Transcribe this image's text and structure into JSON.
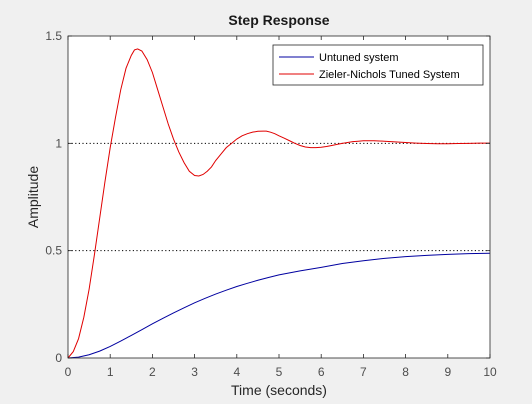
{
  "chart_data": {
    "type": "line",
    "title": "Step Response",
    "xlabel": "Time (seconds)",
    "ylabel": "Amplitude",
    "xlim": [
      0,
      10
    ],
    "ylim": [
      0,
      1.5
    ],
    "xticks": [
      "0",
      "1",
      "2",
      "3",
      "4",
      "5",
      "6",
      "7",
      "8",
      "9",
      "10"
    ],
    "yticks": [
      "0",
      "0.5",
      "1",
      "1.5"
    ],
    "grid": false,
    "reference_lines": [
      0.5,
      1.0
    ],
    "legend_position": "top-right",
    "series": [
      {
        "name": "Untuned system",
        "color": "#0000a0",
        "x": [
          0,
          0.25,
          0.5,
          0.75,
          1,
          1.25,
          1.5,
          1.75,
          2,
          2.25,
          2.5,
          2.75,
          3,
          3.25,
          3.5,
          3.75,
          4,
          4.25,
          4.5,
          4.75,
          5,
          5.5,
          6,
          6.5,
          7,
          7.5,
          8,
          8.5,
          9,
          9.5,
          10
        ],
        "y": [
          0,
          0.004,
          0.015,
          0.032,
          0.054,
          0.079,
          0.105,
          0.132,
          0.159,
          0.185,
          0.21,
          0.234,
          0.257,
          0.278,
          0.298,
          0.316,
          0.333,
          0.348,
          0.362,
          0.375,
          0.387,
          0.406,
          0.422,
          0.44,
          0.453,
          0.464,
          0.472,
          0.478,
          0.483,
          0.486,
          0.488
        ]
      },
      {
        "name": "Zieler-Nichols Tuned System",
        "color": "#e00000",
        "x": [
          0,
          0.125,
          0.25,
          0.375,
          0.5,
          0.625,
          0.75,
          0.875,
          1,
          1.125,
          1.25,
          1.375,
          1.5,
          1.575,
          1.65,
          1.75,
          1.875,
          2,
          2.125,
          2.25,
          2.375,
          2.5,
          2.625,
          2.75,
          2.875,
          3,
          3.1,
          3.2,
          3.3,
          3.4,
          3.5,
          3.625,
          3.75,
          3.875,
          4,
          4.125,
          4.25,
          4.375,
          4.5,
          4.625,
          4.7,
          4.8,
          4.9,
          5,
          5.125,
          5.25,
          5.375,
          5.5,
          5.625,
          5.75,
          5.875,
          6,
          6.125,
          6.25,
          6.375,
          6.5,
          6.625,
          6.75,
          6.875,
          7,
          7.25,
          7.5,
          7.75,
          8,
          8.25,
          8.5,
          8.75,
          9,
          9.25,
          9.5,
          9.75,
          10
        ],
        "y": [
          0,
          0.03,
          0.09,
          0.19,
          0.32,
          0.48,
          0.65,
          0.82,
          0.98,
          1.12,
          1.25,
          1.35,
          1.41,
          1.435,
          1.44,
          1.43,
          1.39,
          1.33,
          1.25,
          1.17,
          1.09,
          1.02,
          0.96,
          0.91,
          0.87,
          0.85,
          0.848,
          0.855,
          0.87,
          0.89,
          0.92,
          0.95,
          0.98,
          1.0,
          1.02,
          1.035,
          1.045,
          1.052,
          1.056,
          1.057,
          1.057,
          1.052,
          1.045,
          1.035,
          1.024,
          1.012,
          1.0,
          0.99,
          0.983,
          0.98,
          0.98,
          0.982,
          0.985,
          0.99,
          0.995,
          1.0,
          1.004,
          1.008,
          1.01,
          1.012,
          1.012,
          1.01,
          1.007,
          1.004,
          1.001,
          0.999,
          0.998,
          0.998,
          0.999,
          1.0,
          1.001,
          1.001
        ]
      }
    ]
  }
}
